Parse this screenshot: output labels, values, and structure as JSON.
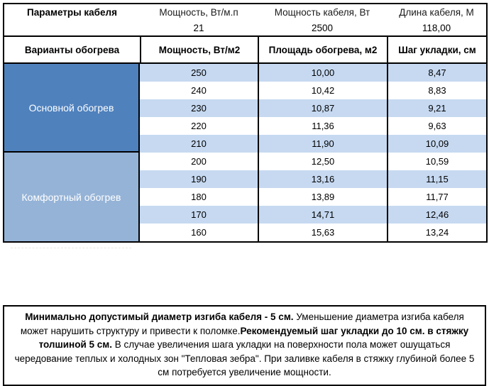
{
  "colors": {
    "main_heating_bg": "#4F81BD",
    "comfort_heating_bg": "#95B3D7",
    "band_row_bg": "#C6D9F1",
    "border": "#000000",
    "section_label_text": "#FFFFFF"
  },
  "top_block": {
    "col1_label": "Параметры кабеля",
    "columns": [
      {
        "label": "Мощность, Вт/м.п",
        "value": "21"
      },
      {
        "label": "Мощность кабеля, Вт",
        "value": "2500"
      },
      {
        "label": "Длина кабеля, М",
        "value": "118,00"
      }
    ]
  },
  "header_row": {
    "col1": "Варианты обогрева",
    "col2": "Мощность, Вт/м2",
    "col3": "Площадь обогрева, м2",
    "col4": "Шаг укладки, см"
  },
  "sections": [
    {
      "label": "Основной обогрев",
      "rows": [
        [
          "250",
          "10,00",
          "8,47"
        ],
        [
          "240",
          "10,42",
          "8,83"
        ],
        [
          "230",
          "10,87",
          "9,21"
        ],
        [
          "220",
          "11,36",
          "9,63"
        ],
        [
          "210",
          "11,90",
          "10,09"
        ]
      ]
    },
    {
      "label": "Комфортный обогрев",
      "rows": [
        [
          "200",
          "12,50",
          "10,59"
        ],
        [
          "190",
          "13,16",
          "11,15"
        ],
        [
          "180",
          "13,89",
          "11,77"
        ],
        [
          "170",
          "14,71",
          "12,46"
        ],
        [
          "160",
          "15,63",
          "13,24"
        ]
      ]
    }
  ],
  "note": {
    "seg1_bold": "Минимально допустимый диаметр изгиба кабеля - 5 см.",
    "seg2": "  Уменьшение диаметра изгиба кабеля может нарушить структуру и привести к поломке.",
    "seg3_bold": "Рекомендуемый шаг укладки до 10 см. в стяжку толшиной 5 см.",
    "seg4": " В  случае увеличения шага укладки на поверхности пола может ошущаться чередование теплых и холодных зон \"Тепловая зебра\". При заливке кабеля в стяжку глубиной более 5 см потребуется увеличение мощности."
  }
}
